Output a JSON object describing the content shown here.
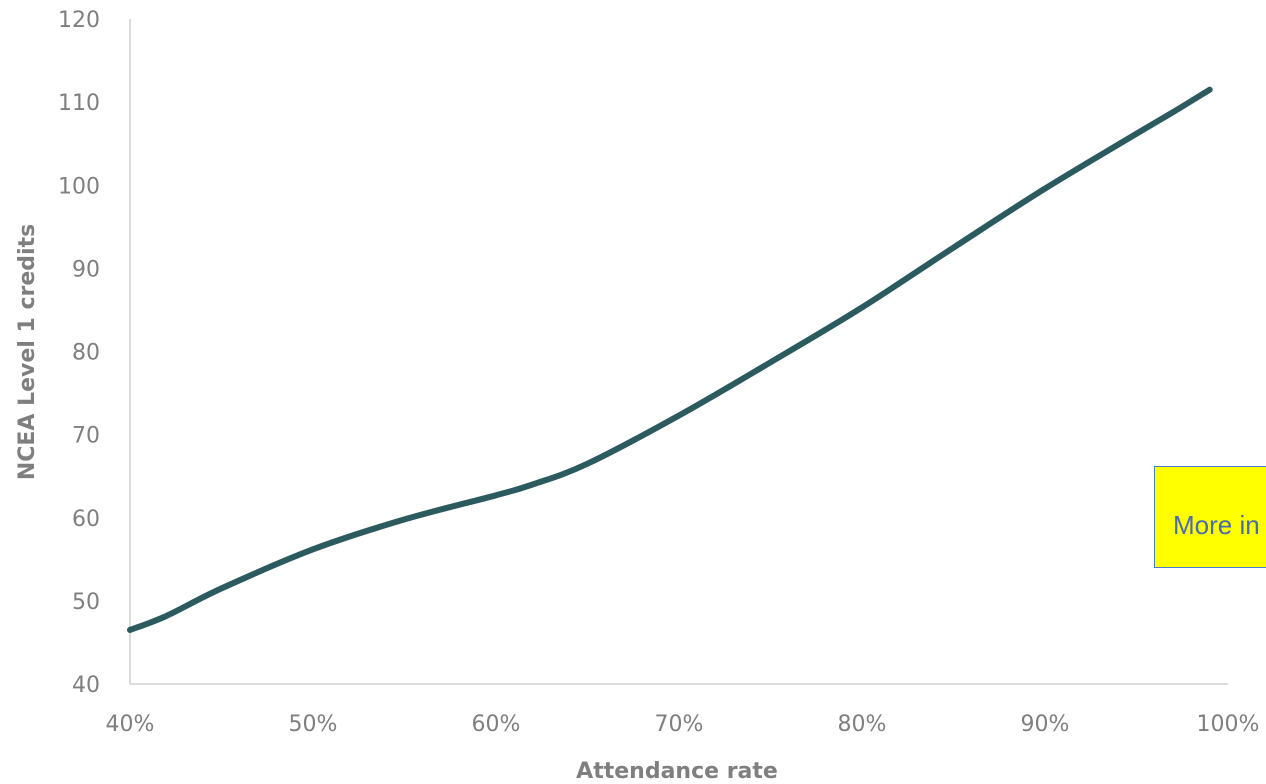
{
  "chart_data": {
    "type": "line",
    "xlabel": "Attendance rate",
    "ylabel": "NCEA Level 1 credits",
    "xlim": [
      0.4,
      1.0
    ],
    "ylim": [
      40,
      120
    ],
    "x_ticks": [
      0.4,
      0.5,
      0.6,
      0.7,
      0.8,
      0.9,
      1.0
    ],
    "x_tick_labels": [
      "40%",
      "50%",
      "60%",
      "70%",
      "80%",
      "90%",
      "100%"
    ],
    "y_ticks": [
      40,
      50,
      60,
      70,
      80,
      90,
      100,
      110,
      120
    ],
    "y_tick_labels": [
      "40",
      "50",
      "60",
      "70",
      "80",
      "90",
      "100",
      "110",
      "120"
    ],
    "grid": false,
    "series": [
      {
        "color": "#2b5b5e",
        "x": [
          0.4,
          0.42,
          0.45,
          0.5,
          0.55,
          0.6,
          0.62,
          0.65,
          0.7,
          0.75,
          0.8,
          0.85,
          0.9,
          0.95,
          0.97,
          0.99
        ],
        "y": [
          46.5,
          48.2,
          51.5,
          56.2,
          59.8,
          62.7,
          64.0,
          66.5,
          72.3,
          78.7,
          85.3,
          92.5,
          99.6,
          106.2,
          108.8,
          111.5
        ]
      }
    ]
  },
  "callout": {
    "text": "More in"
  }
}
